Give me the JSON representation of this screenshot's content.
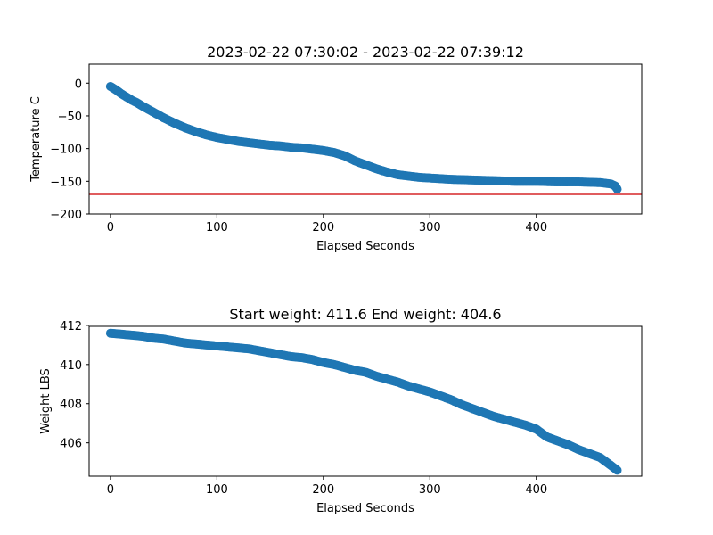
{
  "chart_data": [
    {
      "type": "scatter",
      "title": "2023-02-22 07:30:02 - 2023-02-22 07:39:12",
      "xlabel": "Elapsed Seconds",
      "ylabel": "Temperature C",
      "xlim": [
        -20,
        499
      ],
      "ylim": [
        -200,
        29
      ],
      "xticks": [
        0,
        100,
        200,
        300,
        400
      ],
      "yticks": [
        0,
        -50,
        -100,
        -150,
        -200
      ],
      "xticklabels": [
        "0",
        "100",
        "200",
        "300",
        "400"
      ],
      "yticklabels": [
        "0",
        "−50",
        "−100",
        "−150",
        "−200"
      ],
      "grid": false,
      "marker_color": "#1f77b4",
      "reference_line": {
        "y": -170,
        "color": "#d62728"
      },
      "points": {
        "x": [
          0,
          5,
          10,
          15,
          20,
          25,
          30,
          40,
          50,
          60,
          70,
          80,
          90,
          100,
          110,
          120,
          130,
          140,
          150,
          160,
          170,
          180,
          190,
          200,
          210,
          220,
          230,
          240,
          250,
          260,
          270,
          280,
          290,
          300,
          320,
          340,
          360,
          380,
          400,
          420,
          440,
          460,
          470,
          474,
          476
        ],
        "y": [
          -5,
          -10,
          -16,
          -21,
          -26,
          -30,
          -35,
          -44,
          -53,
          -61,
          -68,
          -74,
          -79,
          -83,
          -86,
          -89,
          -91,
          -93,
          -95,
          -96,
          -98,
          -99,
          -101,
          -103,
          -106,
          -111,
          -119,
          -125,
          -131,
          -136,
          -140,
          -142,
          -144,
          -145,
          -147,
          -148,
          -149,
          -150,
          -150,
          -151,
          -151,
          -152,
          -154,
          -157,
          -162
        ]
      }
    },
    {
      "type": "scatter",
      "title": "Start weight: 411.6 End weight: 404.6",
      "xlabel": "Elapsed Seconds",
      "ylabel": "Weight LBS",
      "xlim": [
        -20,
        499
      ],
      "ylim": [
        404.3,
        411.95
      ],
      "xticks": [
        0,
        100,
        200,
        300,
        400
      ],
      "yticks": [
        406,
        408,
        410,
        412
      ],
      "xticklabels": [
        "0",
        "100",
        "200",
        "300",
        "400"
      ],
      "yticklabels": [
        "406",
        "408",
        "410",
        "412"
      ],
      "grid": false,
      "marker_color": "#1f77b4",
      "points": {
        "x": [
          0,
          10,
          20,
          30,
          40,
          50,
          60,
          70,
          80,
          90,
          100,
          110,
          120,
          130,
          140,
          150,
          160,
          170,
          180,
          190,
          200,
          210,
          220,
          230,
          240,
          250,
          260,
          270,
          280,
          290,
          300,
          310,
          320,
          330,
          340,
          350,
          360,
          370,
          380,
          390,
          400,
          410,
          420,
          430,
          440,
          450,
          460,
          470,
          476
        ],
        "y": [
          411.6,
          411.55,
          411.5,
          411.45,
          411.35,
          411.3,
          411.2,
          411.1,
          411.05,
          411.0,
          410.95,
          410.9,
          410.85,
          410.8,
          410.7,
          410.6,
          410.5,
          410.4,
          410.35,
          410.25,
          410.1,
          410.0,
          409.85,
          409.7,
          409.6,
          409.4,
          409.25,
          409.1,
          408.9,
          408.75,
          408.6,
          408.4,
          408.2,
          407.95,
          407.75,
          407.55,
          407.35,
          407.2,
          407.05,
          406.9,
          406.7,
          406.3,
          406.1,
          405.9,
          405.65,
          405.45,
          405.25,
          404.85,
          404.6
        ]
      }
    }
  ]
}
